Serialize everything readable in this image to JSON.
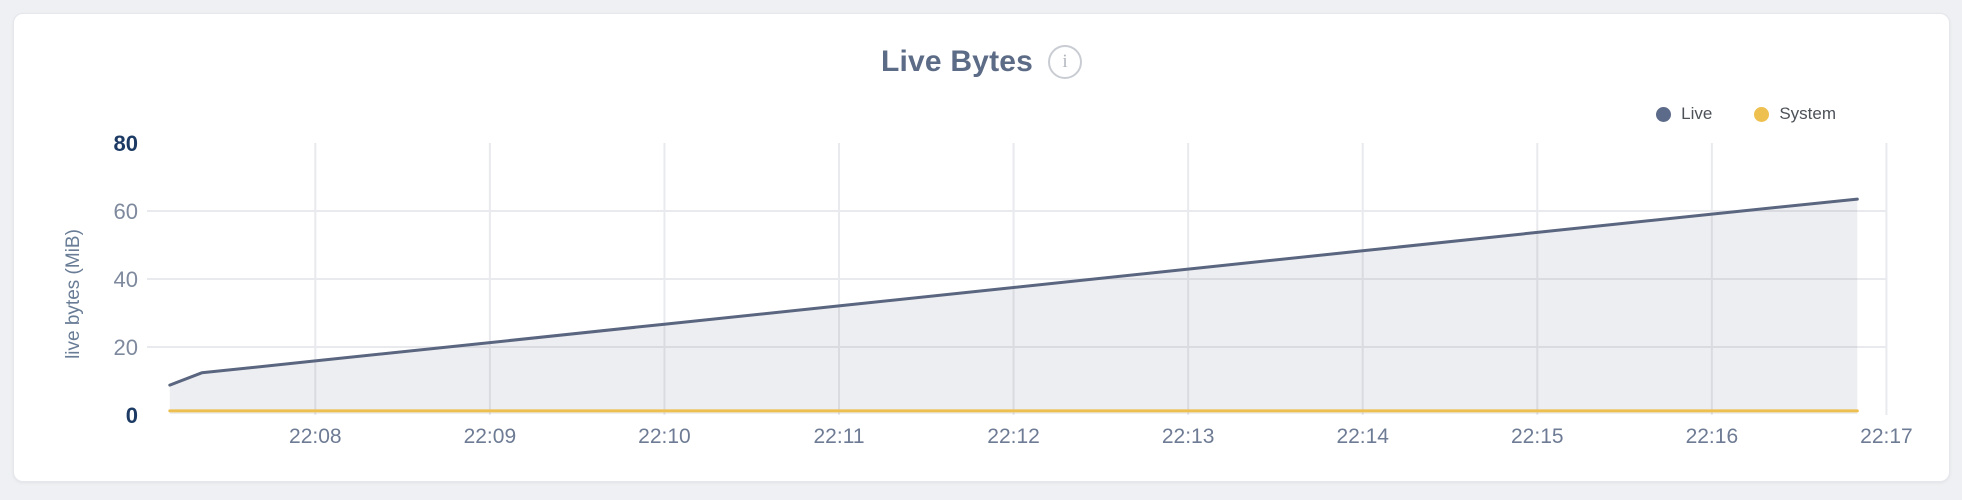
{
  "colors": {
    "page_background": "#eef0f3",
    "card_background": "#ffffff",
    "grid": "#e9eaee",
    "title_text": "#5c6b86",
    "live_line": "#5a657f",
    "live_fill": "rgba(92,104,131,0.11)",
    "system_line": "#edbf4e",
    "y_tick_bold": "#1c3a64",
    "y_tick_normal": "#7e899e",
    "x_tick": "#6e7b94"
  },
  "header": {
    "title": "Live Bytes",
    "info_icon_glyph": "i"
  },
  "legend": {
    "position": "top-right",
    "items": [
      {
        "label": "Live",
        "color": "#5d6b8a"
      },
      {
        "label": "System",
        "color": "#eec04f"
      }
    ]
  },
  "chart_data": {
    "type": "area",
    "title": "Live Bytes",
    "xlabel": "",
    "ylabel": "live bytes (MiB)",
    "ylim": [
      0,
      80
    ],
    "y_ticks": [
      0,
      20,
      40,
      60,
      80
    ],
    "y_gridlines": [
      20,
      40,
      60
    ],
    "x_ticks": [
      "22:08",
      "22:09",
      "22:10",
      "22:11",
      "22:12",
      "22:13",
      "22:14",
      "22:15",
      "22:16",
      "22:17"
    ],
    "grid": true,
    "legend_position": "top-right",
    "series": [
      {
        "name": "Live",
        "color": "#5a657f",
        "fill": "rgba(92,104,131,0.11)",
        "points": [
          {
            "t": "22:07:10",
            "v": 8.8
          },
          {
            "t": "22:07:21",
            "v": 12.4
          },
          {
            "t": "22:08:00",
            "v": 15.9
          },
          {
            "t": "22:09:00",
            "v": 21.3
          },
          {
            "t": "22:10:00",
            "v": 26.7
          },
          {
            "t": "22:11:00",
            "v": 32.1
          },
          {
            "t": "22:12:00",
            "v": 37.5
          },
          {
            "t": "22:13:00",
            "v": 42.9
          },
          {
            "t": "22:14:00",
            "v": 48.3
          },
          {
            "t": "22:15:00",
            "v": 53.7
          },
          {
            "t": "22:16:00",
            "v": 59.1
          },
          {
            "t": "22:16:50",
            "v": 63.5
          }
        ]
      },
      {
        "name": "System",
        "color": "#edbf4e",
        "fill": "none",
        "points": [
          {
            "t": "22:07:10",
            "v": 1.2
          },
          {
            "t": "22:16:50",
            "v": 1.2
          }
        ]
      }
    ]
  }
}
